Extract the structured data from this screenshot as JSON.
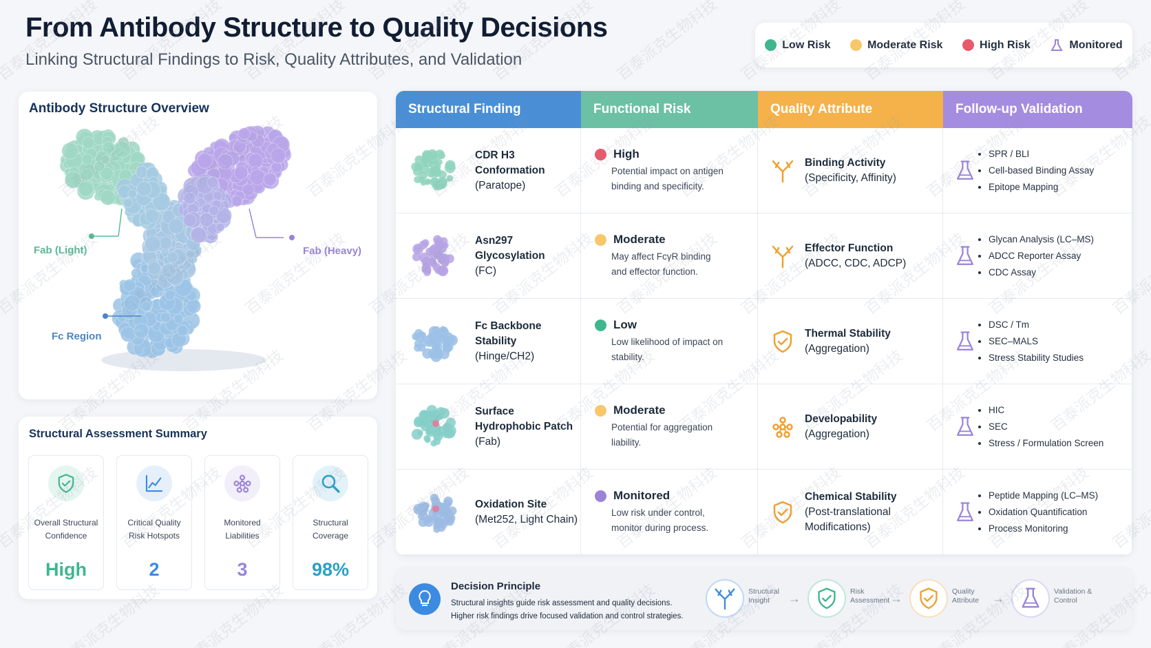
{
  "header": {
    "title": "From Antibody Structure to Quality Decisions",
    "subtitle": "Linking Structural Findings to Risk, Quality Attributes, and Validation"
  },
  "legend": [
    "Low Risk",
    "Moderate Risk",
    "High Risk",
    "Monitored"
  ],
  "overview": {
    "title": "Antibody Structure Overview",
    "labels": [
      "Fab (Light)",
      "Fab (Heavy)",
      "Fc Region"
    ]
  },
  "summary": {
    "title": "Structural Assessment Summary",
    "cards": [
      {
        "label": "Overall Structural Confidence",
        "value": "High"
      },
      {
        "label": "Critical Quality Risk Hotspots",
        "value": "2"
      },
      {
        "label": "Monitored Liabilities",
        "value": "3"
      },
      {
        "label": "Structural Coverage",
        "value": "98%"
      }
    ]
  },
  "table": {
    "headers": [
      "Structural Finding",
      "Functional Risk",
      "Quality Attribute",
      "Follow-up Validation"
    ],
    "rows": [
      {
        "finding": "CDR H3 Conformation",
        "finding_sub": "(Paratope)",
        "risk": "High",
        "risk_desc": "Potential impact on antigen binding and specificity.",
        "attribute": "Binding Activity",
        "attribute_sub": "(Specificity, Affinity)",
        "validation": [
          "SPR / BLI",
          "Cell-based Binding Assay",
          "Epitope Mapping"
        ]
      },
      {
        "finding": "Asn297 Glycosylation",
        "finding_sub": "(FC)",
        "risk": "Moderate",
        "risk_desc": "May affect FcγR binding and effector function.",
        "attribute": "Effector Function",
        "attribute_sub": "(ADCC, CDC, ADCP)",
        "validation": [
          "Glycan Analysis (LC–MS)",
          "ADCC Reporter Assay",
          "CDC Assay"
        ]
      },
      {
        "finding": "Fc Backbone Stability",
        "finding_sub": "(Hinge/CH2)",
        "risk": "Low",
        "risk_desc": "Low likelihood of impact on stability.",
        "attribute": "Thermal Stability",
        "attribute_sub": "(Aggregation)",
        "validation": [
          "DSC / Tm",
          "SEC–MALS",
          "Stress Stability Studies"
        ]
      },
      {
        "finding": "Surface Hydrophobic Patch",
        "finding_sub": "(Fab)",
        "risk": "Moderate",
        "risk_desc": "Potential for aggregation liability.",
        "attribute": "Developability",
        "attribute_sub": "(Aggregation)",
        "validation": [
          "HIC",
          "SEC",
          "Stress / Formulation Screen"
        ]
      },
      {
        "finding": "Oxidation Site",
        "finding_sub": "(Met252, Light Chain)",
        "risk": "Monitored",
        "risk_desc": "Low risk under control, monitor during process.",
        "attribute": "Chemical Stability",
        "attribute_sub": "(Post-translational Modifications)",
        "validation": [
          "Peptide Mapping (LC–MS)",
          "Oxidation Quantification",
          "Process Monitoring"
        ]
      }
    ]
  },
  "decision": {
    "title": "Decision Principle",
    "lines": [
      "Structural insights guide risk assessment and quality decisions.",
      "Higher risk findings drive focused validation and control strategies."
    ],
    "flow": [
      "Structural Insight",
      "Risk Assessment",
      "Quality Attribute",
      "Validation & Control"
    ]
  },
  "watermark": "百泰派克生物科技"
}
